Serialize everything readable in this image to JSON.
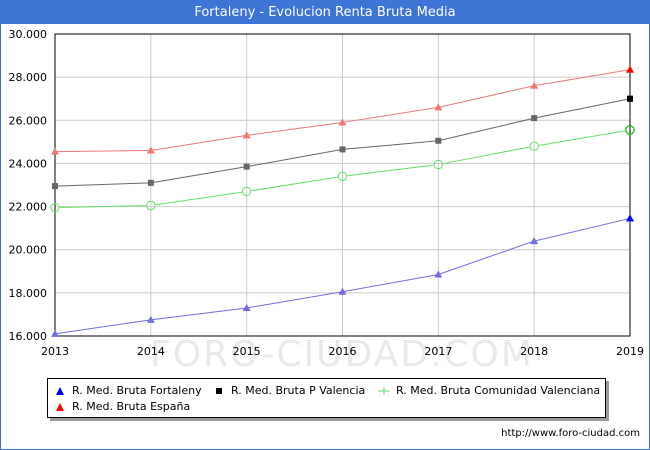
{
  "title": "Fortaleny - Evolucion Renta Bruta Media",
  "footer": "http://www.foro-ciudad.com",
  "watermark": "FORO-CIUDAD.COM",
  "chart_data": {
    "type": "line",
    "title": "Fortaleny - Evolucion Renta Bruta Media",
    "x": [
      "2013",
      "2014",
      "2015",
      "2016",
      "2017",
      "2018",
      "2019"
    ],
    "ylim": [
      16000,
      30000
    ],
    "yticks": [
      "16.000",
      "18.000",
      "20.000",
      "22.000",
      "24.000",
      "26.000",
      "28.000",
      "30.000"
    ],
    "grid": true,
    "legend_position": "bottom",
    "series": [
      {
        "name": "R. Med. Bruta Fortaleny",
        "color": "#6f6fe0",
        "marker_color": "#0000ff",
        "marker": "triangle",
        "values": [
          16100,
          16750,
          17300,
          18050,
          18850,
          20400,
          21450
        ]
      },
      {
        "name": "R. Med. Bruta P Valencia",
        "color": "#666666",
        "marker_color": "#000000",
        "marker": "square",
        "values": [
          22950,
          23100,
          23850,
          24650,
          25050,
          26100,
          27000
        ]
      },
      {
        "name": "R. Med. Bruta Comunidad Valenciana",
        "color": "#66dd66",
        "marker_color": "#00aa00",
        "marker": "circle",
        "values": [
          21950,
          22050,
          22700,
          23400,
          23950,
          24800,
          25550
        ]
      },
      {
        "name": "R. Med. Bruta España",
        "color": "#ee7777",
        "marker_color": "#ff0000",
        "marker": "triangle",
        "values": [
          24550,
          24600,
          25300,
          25900,
          26600,
          27600,
          28350
        ]
      }
    ]
  }
}
